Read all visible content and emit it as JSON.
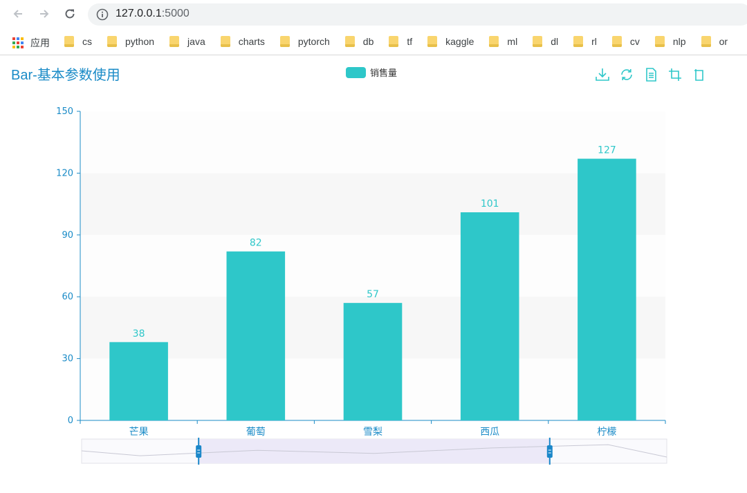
{
  "browser": {
    "url_host": "127.0.0.1",
    "url_port": ":5000",
    "apps_label": "应用",
    "bookmarks": [
      "cs",
      "python",
      "java",
      "charts",
      "pytorch",
      "db",
      "tf",
      "kaggle",
      "ml",
      "dl",
      "rl",
      "cv",
      "nlp",
      "or"
    ]
  },
  "chart": {
    "title": "Bar-基本参数使用",
    "legend_label": "销售量",
    "bar_color": "#2ec7c9",
    "axis_color": "#1a8bc7",
    "zoom_fill": "#ece9f8"
  },
  "chart_data": {
    "type": "bar",
    "title": "Bar-基本参数使用",
    "categories": [
      "芒果",
      "葡萄",
      "雪梨",
      "西瓜",
      "柠檬"
    ],
    "series": [
      {
        "name": "销售量",
        "values": [
          38,
          82,
          57,
          101,
          127
        ]
      }
    ],
    "ylim": [
      0,
      150
    ],
    "yticks": [
      0,
      30,
      60,
      90,
      120,
      150
    ],
    "xlabel": "",
    "ylabel": "",
    "legend_position": "top-center",
    "data_labels": true,
    "grid": "alternating-bands",
    "datazoom": {
      "start_fraction": 0.2,
      "end_fraction": 0.8
    }
  }
}
